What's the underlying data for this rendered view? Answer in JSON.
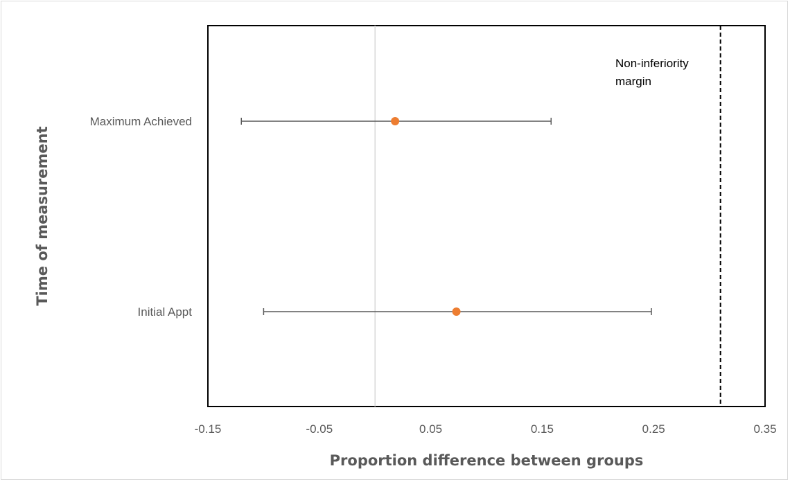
{
  "chart_data": {
    "type": "scatter",
    "xlabel": "Proportion difference between groups",
    "ylabel": "Time of measurement",
    "xlim": [
      -0.15,
      0.35
    ],
    "xticks": [
      "-0.15",
      "-0.05",
      "0.05",
      "0.15",
      "0.25",
      "0.35"
    ],
    "xtick_values": [
      -0.15,
      -0.05,
      0.05,
      0.15,
      0.25,
      0.35
    ],
    "categories": [
      "Maximum Achieved",
      "Initial Appt"
    ],
    "series": [
      {
        "values": [
          0.018,
          0.073
        ],
        "ci_lower": [
          -0.12,
          -0.1
        ],
        "ci_upper": [
          0.158,
          0.248
        ]
      }
    ],
    "reference_line": {
      "x": 0
    },
    "margin_line": {
      "x": 0.31,
      "label": "Non-inferiority margin",
      "label_lines": [
        "Non-inferiority",
        "margin"
      ]
    },
    "colors": {
      "point": "#ED7D31",
      "error_bar": "#595959",
      "zero_line": "#d9d9d9",
      "margin_line": "#000000"
    },
    "grid": false
  }
}
